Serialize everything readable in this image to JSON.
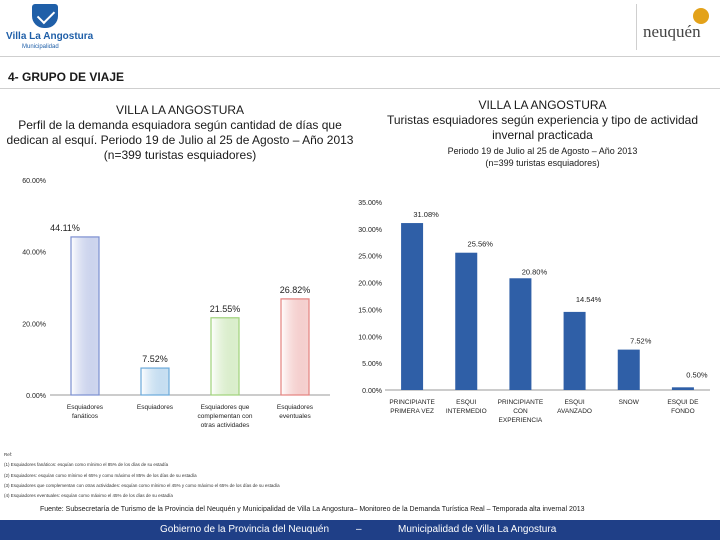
{
  "header": {
    "left_logo_name": "Villa La Angostura",
    "left_logo_sub": "Municipalidad",
    "right_logo_name": "neuquén"
  },
  "section_title": "4- GRUPO DE VIAJE",
  "chart_data": [
    {
      "type": "bar",
      "title_lines": [
        "VILLA LA ANGOSTURA",
        "Perfil de la demanda esquiadora según cantidad de días que",
        "dedican al esquí. Periodo 19 de Julio al 25 de Agosto – Año 2013",
        "(n=399 turistas esquiadores)"
      ],
      "categories": [
        [
          "Esquiadores",
          "fanáticos"
        ],
        [
          "Esquiadores"
        ],
        [
          "Esquiadores que",
          "complementan con",
          "otras actividades"
        ],
        [
          "Esquiadores",
          "eventuales"
        ]
      ],
      "values": [
        44.11,
        7.52,
        21.55,
        26.82
      ],
      "value_labels": [
        "44.11%",
        "7.52%",
        "21.55%",
        "26.82%"
      ],
      "yticks": [
        "0.00%",
        "20.00%",
        "40.00%",
        "60.00%"
      ],
      "ylim": [
        0,
        60
      ],
      "bar_colors": [
        "#ffffff",
        "#ffffff",
        "#ffffff",
        "#ffffff"
      ],
      "bar_borders": [
        "#7b8fd0",
        "#6aa9da",
        "#9fd27a",
        "#e4827f"
      ],
      "grid": false
    },
    {
      "type": "bar",
      "title_lines": [
        "VILLA LA ANGOSTURA",
        "Turistas esquiadores según experiencia y tipo de actividad",
        "invernal practicada"
      ],
      "subtitle_lines": [
        "Periodo 19 de Julio al 25 de Agosto – Año 2013",
        "(n=399 turistas esquiadores)"
      ],
      "categories": [
        [
          "PRINCIPIANTE",
          "PRIMERA VEZ"
        ],
        [
          "ESQUI",
          "INTERMEDIO"
        ],
        [
          "PRINCIPIANTE",
          "CON",
          "EXPERIENCIA"
        ],
        [
          "ESQUI",
          "AVANZADO"
        ],
        [
          "SNOW"
        ],
        [
          "ESQUI DE",
          "FONDO"
        ]
      ],
      "values": [
        31.08,
        25.56,
        20.8,
        14.54,
        7.52,
        0.5
      ],
      "value_labels": [
        "31.08%",
        "25.56%",
        "20.80%",
        "14.54%",
        "7.52%",
        "0.50%"
      ],
      "yticks": [
        "0.00%",
        "5.00%",
        "10.00%",
        "15.00%",
        "20.00%",
        "25.00%",
        "30.00%",
        "35.00%"
      ],
      "ylim": [
        0,
        35
      ],
      "bar_color": "#2f5fa7",
      "grid": false
    }
  ],
  "notes": [
    "Ref:",
    "(1) Esquiadores fanáticos: esquían como mínimo el 85% de los días de su estadía",
    "(2) Esquiadores: esquían como mínimo el 65% y como máximo el 85% de los días de su estadía",
    "(3) Esquiadores que complementan con otras actividades: esquían como mínimo el 45% y como máximo el 65% de los días de su estadía",
    "(4) Esquiadores eventuales: esquían como máximo el 45% de los días de su estadía"
  ],
  "source": "Fuente: Subsecretaría de Turismo de la Provincia del Neuquén y Municipalidad de Villa La Angostura– Monitoreo de la Demanda Turística Real – Temporada alta invernal 2013",
  "footer": {
    "left": "Gobierno de la Provincia del Neuquén",
    "sep": "–",
    "right": "Municipalidad de Villa La Angostura"
  }
}
